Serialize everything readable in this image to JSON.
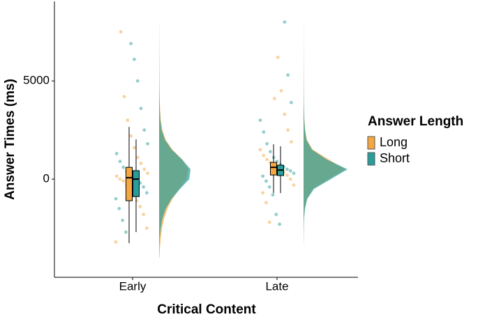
{
  "chart_data": {
    "type": "raincloud",
    "xlabel": "Critical Content",
    "ylabel": "Answer Times (ms)",
    "legend_title": "Answer Length",
    "categories": [
      "Early",
      "Late"
    ],
    "ylim": [
      -5000,
      9050
    ],
    "yticks": [
      0,
      5000
    ],
    "density_y": [
      -4000,
      -3500,
      -3000,
      -2500,
      -2000,
      -1500,
      -1000,
      -500,
      0,
      500,
      1000,
      1500,
      2000,
      2500,
      3000,
      3500,
      4000,
      4500,
      5000,
      5500,
      6000,
      6500,
      7000,
      7500,
      8000
    ],
    "series": [
      {
        "name": "Long",
        "color": "#f5a742",
        "boxes": [
          {
            "min": -3260,
            "q1": -1100,
            "median": 70,
            "q3": 600,
            "max": 2660
          },
          {
            "min": -710,
            "q1": 210,
            "median": 600,
            "q3": 850,
            "max": 1770
          }
        ],
        "points": [
          [
            -3200,
            -2500,
            -1800,
            -1400,
            -1100,
            -800,
            -500,
            -300,
            -100,
            0,
            150,
            300,
            500,
            800,
            1100,
            1600,
            2200,
            3000,
            4200,
            7500
          ],
          [
            -2200,
            -1200,
            -700,
            -300,
            0,
            200,
            350,
            500,
            600,
            700,
            850,
            1000,
            1200,
            1500,
            1900,
            2500,
            3300,
            4500,
            6200,
            4100
          ]
        ],
        "density": [
          [
            0.01,
            0.02,
            0.04,
            0.07,
            0.12,
            0.2,
            0.32,
            0.48,
            0.65,
            0.7,
            0.55,
            0.32,
            0.16,
            0.08,
            0.04,
            0.025,
            0.015,
            0.01,
            0.008,
            0.005,
            0.004,
            0.003,
            0.002,
            0.002,
            0.001
          ],
          [
            0,
            0,
            0.002,
            0.005,
            0.01,
            0.03,
            0.08,
            0.22,
            0.6,
            1.0,
            0.6,
            0.22,
            0.08,
            0.04,
            0.02,
            0.012,
            0.008,
            0.005,
            0.004,
            0.003,
            0.002,
            0.002,
            0.001,
            0.001,
            0.001
          ]
        ]
      },
      {
        "name": "Short",
        "color": "#2a9d9a",
        "boxes": [
          {
            "min": -2700,
            "q1": -890,
            "median": 0,
            "q3": 430,
            "max": 2020
          },
          {
            "min": -710,
            "q1": 180,
            "median": 460,
            "q3": 710,
            "max": 1670
          }
        ],
        "points": [
          [
            -2700,
            -2100,
            -1500,
            -1000,
            -700,
            -400,
            -200,
            0,
            100,
            250,
            400,
            600,
            900,
            1300,
            1800,
            2500,
            3600,
            5000,
            6100,
            6900
          ],
          [
            -2300,
            -1800,
            -800,
            -400,
            -100,
            150,
            300,
            420,
            500,
            620,
            750,
            900,
            1100,
            1400,
            1800,
            2400,
            3000,
            3900,
            5300,
            8000
          ]
        ],
        "density": [
          [
            0,
            0.005,
            0.015,
            0.04,
            0.08,
            0.16,
            0.3,
            0.5,
            0.72,
            0.75,
            0.55,
            0.3,
            0.14,
            0.06,
            0.03,
            0.018,
            0.01,
            0.007,
            0.005,
            0.004,
            0.003,
            0.002,
            0.002,
            0.001,
            0.001
          ],
          [
            0,
            0,
            0.003,
            0.006,
            0.012,
            0.035,
            0.09,
            0.25,
            0.65,
            1.05,
            0.55,
            0.2,
            0.07,
            0.035,
            0.018,
            0.011,
            0.007,
            0.005,
            0.004,
            0.003,
            0.002,
            0.002,
            0.001,
            0.001,
            0.001
          ]
        ]
      }
    ]
  }
}
